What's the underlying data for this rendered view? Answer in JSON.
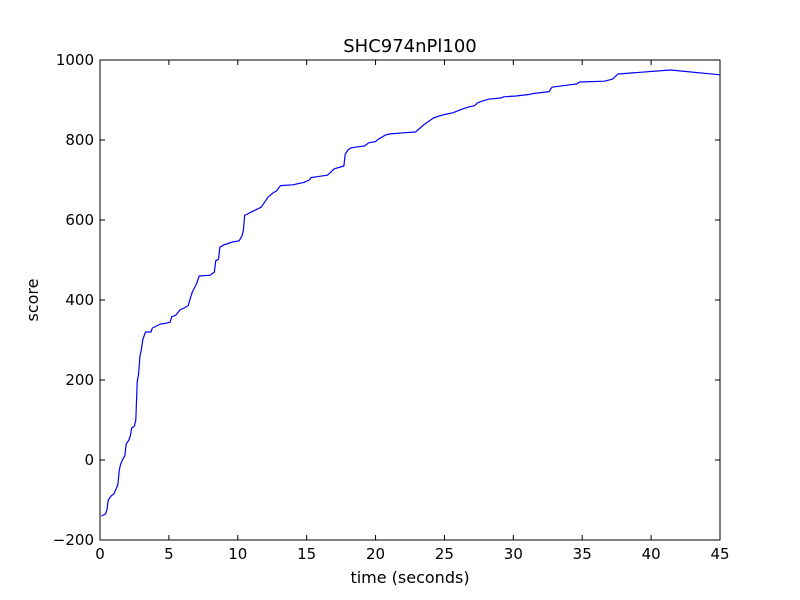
{
  "chart_data": {
    "type": "line",
    "title": "SHC974nPl100",
    "xlabel": "time (seconds)",
    "ylabel": "score",
    "xlim": [
      0,
      45
    ],
    "ylim": [
      -200,
      1000
    ],
    "xticks": [
      "0",
      "5",
      "10",
      "15",
      "20",
      "25",
      "30",
      "35",
      "40",
      "45"
    ],
    "yticks": [
      "−200",
      "0",
      "200",
      "400",
      "600",
      "800",
      "1000"
    ],
    "grid": false,
    "legend": "none",
    "series": [
      {
        "color": "#0000ff",
        "x": [
          0.1,
          0.4,
          0.5,
          0.6,
          0.8,
          1.0,
          1.2,
          1.3,
          1.4,
          1.5,
          1.7,
          1.8,
          1.9,
          2.1,
          2.2,
          2.3,
          2.5,
          2.6,
          2.7,
          2.8,
          2.9,
          3.0,
          3.1,
          3.3,
          3.7,
          3.8,
          4.1,
          4.4,
          4.8,
          5.1,
          5.2,
          5.5,
          5.8,
          6.1,
          6.4,
          6.5,
          6.7,
          7.0,
          7.2,
          8.0,
          8.3,
          8.4,
          8.6,
          8.7,
          9.0,
          9.2,
          9.6,
          10.1,
          10.3,
          10.4,
          10.5,
          10.7,
          11.1,
          11.7,
          12.2,
          12.6,
          12.8,
          13.1,
          14.0,
          14.8,
          15.2,
          15.3,
          15.7,
          16.5,
          16.7,
          17.0,
          17.7,
          17.8,
          18.0,
          18.2,
          18.5,
          19.2,
          19.5,
          20.0,
          20.2,
          20.7,
          21.0,
          22.0,
          22.9,
          23.5,
          24.2,
          24.8,
          25.2,
          25.6,
          26.2,
          26.7,
          27.2,
          27.4,
          27.8,
          28.2,
          29.1,
          29.3,
          30.2,
          31.2,
          31.4,
          32.6,
          32.8,
          34.1,
          34.6,
          34.8,
          36.6,
          37.2,
          37.6,
          41.4,
          45.0
        ],
        "y": [
          -140,
          -135,
          -125,
          -100,
          -90,
          -85,
          -70,
          -60,
          -25,
          -10,
          5,
          10,
          40,
          50,
          60,
          80,
          85,
          100,
          195,
          215,
          260,
          275,
          300,
          320,
          320,
          330,
          335,
          340,
          342,
          345,
          358,
          362,
          375,
          380,
          386,
          398,
          420,
          440,
          460,
          462,
          470,
          498,
          502,
          532,
          538,
          540,
          545,
          548,
          560,
          572,
          612,
          615,
          622,
          632,
          657,
          669,
          672,
          686,
          688,
          694,
          700,
          706,
          708,
          712,
          718,
          728,
          735,
          765,
          775,
          780,
          782,
          785,
          793,
          796,
          802,
          812,
          815,
          818,
          820,
          838,
          855,
          862,
          865,
          868,
          876,
          882,
          886,
          893,
          898,
          902,
          905,
          908,
          910,
          914,
          916,
          921,
          932,
          938,
          940,
          945,
          947,
          952,
          965,
          975,
          963
        ]
      }
    ]
  }
}
